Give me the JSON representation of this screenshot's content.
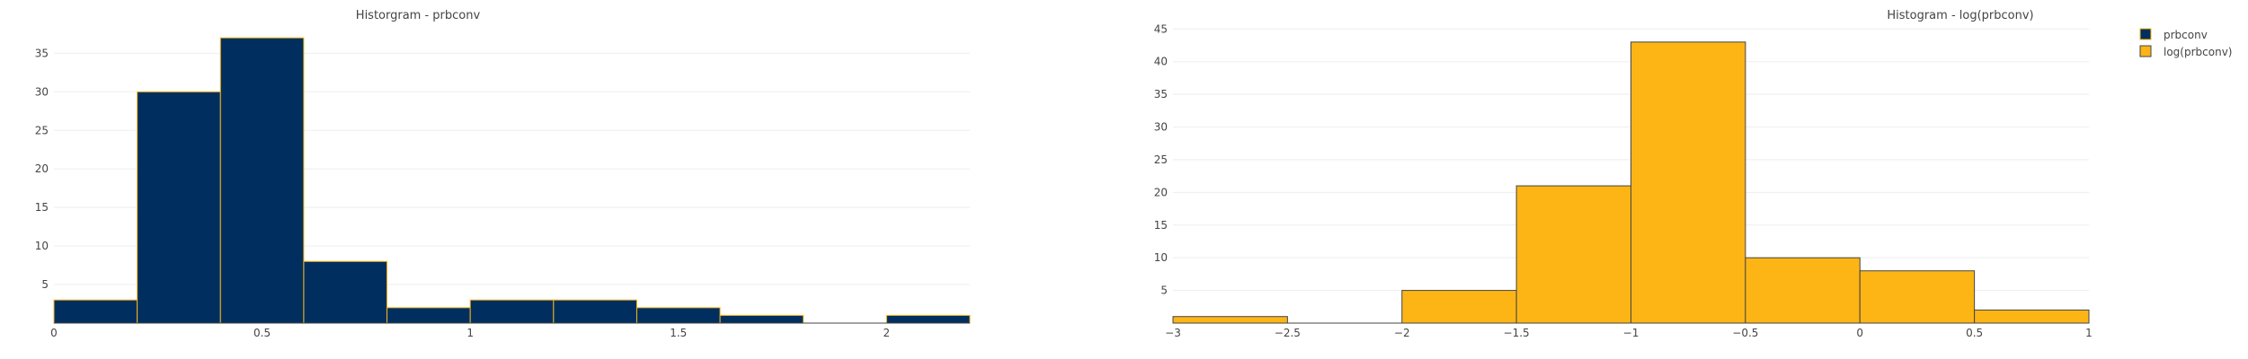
{
  "chart_data": [
    {
      "type": "bar",
      "title": "Historgram - prbconv",
      "series_name": "prbconv",
      "fill": "#002F5F",
      "stroke": "#FDB515",
      "xlim": [
        0,
        2.2
      ],
      "ylim": [
        0,
        39
      ],
      "xticks": [
        0,
        0.5,
        1,
        1.5,
        2
      ],
      "xtick_labels": [
        "0",
        "0.5",
        "1",
        "1.5",
        "2"
      ],
      "yticks": [
        5,
        10,
        15,
        20,
        25,
        30,
        35
      ],
      "ytick_labels": [
        "5",
        "10",
        "15",
        "20",
        "25",
        "30",
        "35"
      ],
      "bins": [
        {
          "x0": 0.0,
          "x1": 0.2,
          "count": 3
        },
        {
          "x0": 0.2,
          "x1": 0.4,
          "count": 30
        },
        {
          "x0": 0.4,
          "x1": 0.6,
          "count": 37
        },
        {
          "x0": 0.6,
          "x1": 0.8,
          "count": 8
        },
        {
          "x0": 0.8,
          "x1": 1.0,
          "count": 2
        },
        {
          "x0": 1.0,
          "x1": 1.2,
          "count": 3
        },
        {
          "x0": 1.2,
          "x1": 1.4,
          "count": 3
        },
        {
          "x0": 1.4,
          "x1": 1.6,
          "count": 2
        },
        {
          "x0": 1.6,
          "x1": 1.8,
          "count": 1
        },
        {
          "x0": 1.8,
          "x1": 2.0,
          "count": 0
        },
        {
          "x0": 2.0,
          "x1": 2.2,
          "count": 1
        }
      ]
    },
    {
      "type": "bar",
      "title": "Histogram - log(prbconv)",
      "series_name": "log(prbconv)",
      "fill": "#FDB515",
      "stroke": "#444444",
      "xlim": [
        -3,
        1
      ],
      "ylim": [
        0,
        46
      ],
      "xticks": [
        -3,
        -2.5,
        -2,
        -1.5,
        -1,
        -0.5,
        0,
        0.5,
        1
      ],
      "xtick_labels": [
        "−3",
        "−2.5",
        "−2",
        "−1.5",
        "−1",
        "−0.5",
        "0",
        "0.5",
        "1"
      ],
      "yticks": [
        5,
        10,
        15,
        20,
        25,
        30,
        35,
        40,
        45
      ],
      "ytick_labels": [
        "5",
        "10",
        "15",
        "20",
        "25",
        "30",
        "35",
        "40",
        "45"
      ],
      "bins": [
        {
          "x0": -3.0,
          "x1": -2.5,
          "count": 1
        },
        {
          "x0": -2.5,
          "x1": -2.0,
          "count": 0
        },
        {
          "x0": -2.0,
          "x1": -1.5,
          "count": 5
        },
        {
          "x0": -1.5,
          "x1": -1.0,
          "count": 21
        },
        {
          "x0": -1.0,
          "x1": -0.5,
          "count": 43
        },
        {
          "x0": -0.5,
          "x1": 0.0,
          "count": 10
        },
        {
          "x0": 0.0,
          "x1": 0.5,
          "count": 8
        },
        {
          "x0": 0.5,
          "x1": 1.0,
          "count": 2
        }
      ]
    }
  ],
  "legend": {
    "placement": "top-right",
    "items": [
      {
        "label": "prbconv",
        "fill": "#002F5F",
        "stroke": "#FDB515"
      },
      {
        "label": "log(prbconv)",
        "fill": "#FDB515",
        "stroke": "#444444"
      }
    ]
  }
}
